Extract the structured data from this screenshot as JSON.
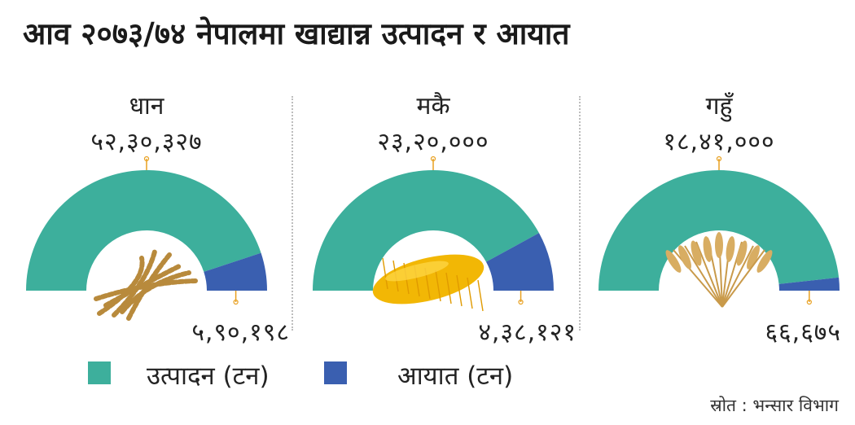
{
  "title": "आव २०७३/७४ नेपालमा खाद्यान्न उत्पादन र आयात",
  "colors": {
    "production": "#3daf9c",
    "import": "#3a5fb0",
    "leader": "#e8a020"
  },
  "chart_data": {
    "type": "gauge-semicircle",
    "categories": [
      "धान",
      "मकै",
      "गहुँ"
    ],
    "series": [
      {
        "name": "उत्पादन (टन)",
        "values": [
          5230327,
          2320000,
          1841000
        ],
        "labels": [
          "५२,३०,३२७",
          "२३,२०,०००",
          "१८,४१,०००"
        ]
      },
      {
        "name": "आयात (टन)",
        "values": [
          590198,
          438121,
          66675
        ],
        "labels": [
          "५,९०,१९८",
          "४,३८,१२१",
          "६६,६७५"
        ]
      }
    ]
  },
  "legend": {
    "production": "उत्पादन (टन)",
    "import": "आयात (टन)"
  },
  "source": "स्रोत : भन्सार विभाग"
}
